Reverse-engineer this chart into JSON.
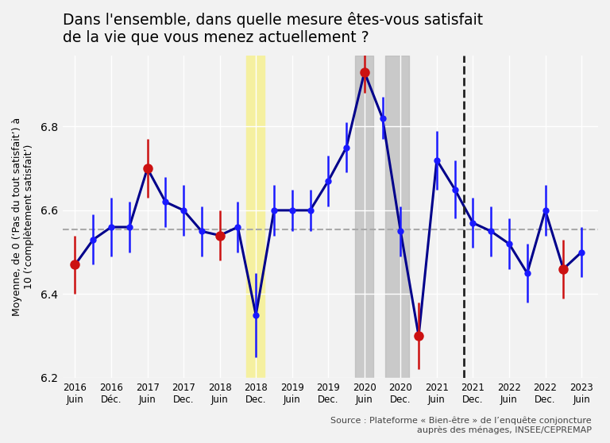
{
  "title": "Dans l'ensemble, dans quelle mesure êtes-vous satisfait\nde la vie que vous menez actuellement ?",
  "ylabel": "Moyenne, de 0 (‘Pas du tout satisfait’) à\n10 (‘complètement satisfait’)",
  "source": "Source : Plateforme « Bien-être » de l’enquête conjoncture\nauprès des ménages, INSEE/CEPREMAP",
  "ylim": [
    6.2,
    6.97
  ],
  "yticks": [
    6.2,
    6.4,
    6.6,
    6.8
  ],
  "hline_y": 6.555,
  "background_color": "#f2f2f2",
  "line_color": "#00008B",
  "dot_color_regular": "#1a1aff",
  "dot_color_special": "#cc1111",
  "errorbar_color_regular": "#1a1aff",
  "errorbar_color_special": "#cc1111",
  "hline_color": "#aaaaaa",
  "dashed_vline_color": "#222222",
  "yellow_band_xmin": 2018.79,
  "yellow_band_xmax": 2019.04,
  "grey_band1_xmin": 2020.29,
  "grey_band1_xmax": 2020.54,
  "grey_band2_xmin": 2020.71,
  "grey_band2_xmax": 2021.04,
  "yellow_band_color": "#f5f0a0",
  "grey_band_color": "#b8b8b8",
  "grey_band_alpha": 0.7,
  "dashed_vline_x": 2021.79,
  "dates": [
    2016.42,
    2016.67,
    2016.92,
    2017.17,
    2017.42,
    2017.67,
    2017.92,
    2018.17,
    2018.42,
    2018.67,
    2018.92,
    2019.17,
    2019.42,
    2019.67,
    2019.92,
    2020.17,
    2020.42,
    2020.67,
    2020.92,
    2021.17,
    2021.42,
    2021.67,
    2021.92,
    2022.17,
    2022.42,
    2022.67,
    2022.92,
    2023.17,
    2023.42
  ],
  "values": [
    6.47,
    6.53,
    6.56,
    6.56,
    6.7,
    6.62,
    6.6,
    6.55,
    6.54,
    6.56,
    6.35,
    6.6,
    6.6,
    6.6,
    6.67,
    6.75,
    6.93,
    6.82,
    6.55,
    6.3,
    6.72,
    6.65,
    6.57,
    6.55,
    6.52,
    6.45,
    6.6,
    6.46,
    6.5
  ],
  "yerr_low": [
    0.07,
    0.06,
    0.07,
    0.06,
    0.07,
    0.06,
    0.06,
    0.06,
    0.06,
    0.06,
    0.1,
    0.06,
    0.05,
    0.05,
    0.06,
    0.06,
    0.05,
    0.05,
    0.06,
    0.08,
    0.07,
    0.07,
    0.06,
    0.06,
    0.06,
    0.07,
    0.06,
    0.07,
    0.06
  ],
  "yerr_high": [
    0.07,
    0.06,
    0.07,
    0.06,
    0.07,
    0.06,
    0.06,
    0.06,
    0.06,
    0.06,
    0.1,
    0.06,
    0.05,
    0.05,
    0.06,
    0.06,
    0.05,
    0.05,
    0.06,
    0.08,
    0.07,
    0.07,
    0.06,
    0.06,
    0.06,
    0.07,
    0.06,
    0.07,
    0.06
  ],
  "special_indices": [
    0,
    4,
    8,
    16,
    19,
    27
  ],
  "xtick_positions": [
    2016.42,
    2016.92,
    2017.42,
    2017.92,
    2018.42,
    2018.92,
    2019.42,
    2019.92,
    2020.42,
    2020.92,
    2021.42,
    2021.92,
    2022.42,
    2022.92,
    2023.42
  ],
  "xtick_labels_line1": [
    "2016",
    "2016",
    "2017",
    "2017",
    "2018",
    "2018",
    "2019",
    "2019",
    "2020",
    "2020",
    "2021",
    "2021",
    "2022",
    "2022",
    "2023"
  ],
  "xtick_labels_line2": [
    "Juin",
    "Déc.",
    "Juin",
    "Dec.",
    "Juin",
    "Dec.",
    "Juin",
    "Dec.",
    "Juin",
    "Dec.",
    "Juin",
    "Dec.",
    "Juin",
    "Dec.",
    "Juin"
  ]
}
